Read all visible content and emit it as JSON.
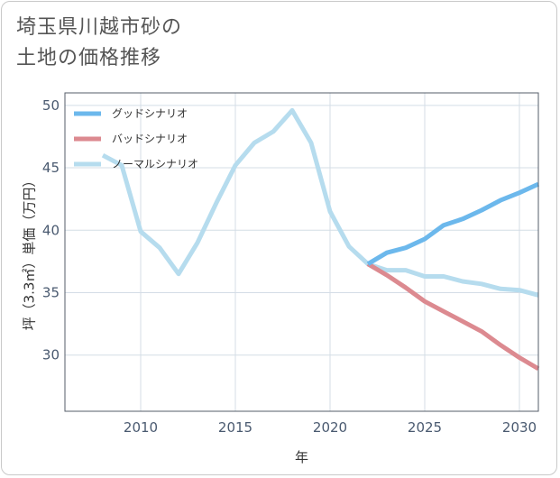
{
  "title": {
    "line1": "埼玉県川越市砂の",
    "line2": "土地の価格推移"
  },
  "colors": {
    "good": "#6cb8ec",
    "bad": "#dc8a90",
    "normal": "#b6dcee",
    "grid": "#d4dde6",
    "plot_border": "#555e6a"
  },
  "chart_data": {
    "type": "line",
    "xlabel": "年",
    "ylabel": "坪（3.3㎡）単価（万円）",
    "xlim": [
      2006,
      2031
    ],
    "ylim": [
      25.5,
      51
    ],
    "xticks": [
      2010,
      2015,
      2020,
      2025,
      2030
    ],
    "yticks": [
      30,
      35,
      40,
      45,
      50
    ],
    "legend_position": "top-left",
    "grid": true,
    "series": [
      {
        "name": "グッドシナリオ",
        "color_key": "good",
        "x": [
          2022,
          2023,
          2024,
          2025,
          2026,
          2027,
          2028,
          2029,
          2030,
          2031
        ],
        "values": [
          37.3,
          38.2,
          38.6,
          39.3,
          40.4,
          40.9,
          41.6,
          42.4,
          43.0,
          43.7
        ]
      },
      {
        "name": "バッドシナリオ",
        "color_key": "bad",
        "x": [
          2022,
          2023,
          2024,
          2025,
          2026,
          2027,
          2028,
          2029,
          2030,
          2031
        ],
        "values": [
          37.3,
          36.4,
          35.4,
          34.3,
          33.5,
          32.7,
          31.9,
          30.8,
          29.8,
          28.9
        ]
      },
      {
        "name": "ノーマルシナリオ",
        "color_key": "normal",
        "x": [
          2008,
          2009,
          2010,
          2011,
          2012,
          2013,
          2014,
          2015,
          2016,
          2017,
          2018,
          2019,
          2020,
          2021,
          2022,
          2023,
          2024,
          2025,
          2026,
          2027,
          2028,
          2029,
          2030,
          2031
        ],
        "values": [
          46.0,
          45.2,
          39.9,
          38.6,
          36.5,
          39.0,
          42.2,
          45.2,
          47.0,
          47.9,
          49.6,
          47.0,
          41.5,
          38.7,
          37.3,
          36.8,
          36.8,
          36.3,
          36.3,
          35.9,
          35.7,
          35.3,
          35.2,
          34.8
        ]
      }
    ]
  }
}
